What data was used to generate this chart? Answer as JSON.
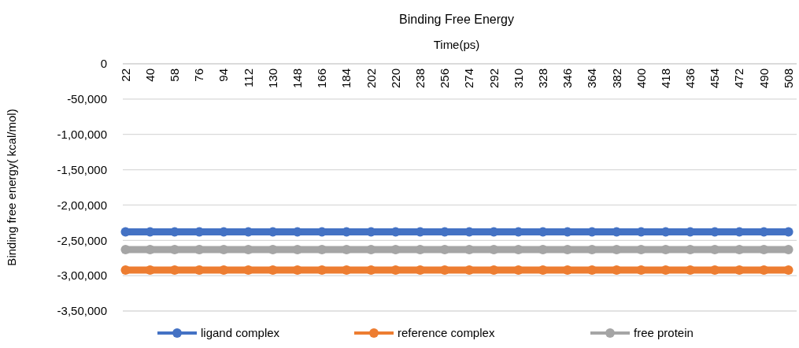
{
  "chart_data": {
    "type": "line",
    "title": "Binding Free Energy",
    "xlabel": "Time(ps)",
    "ylabel": "Binding free energy( kcal/mol)",
    "x": [
      22,
      40,
      58,
      76,
      94,
      112,
      130,
      148,
      166,
      184,
      202,
      220,
      238,
      256,
      274,
      292,
      310,
      328,
      346,
      364,
      382,
      400,
      418,
      436,
      454,
      472,
      490,
      508
    ],
    "series": [
      {
        "name": "ligand complex",
        "color": "#4472c4",
        "values": [
          -238000,
          -238000,
          -238000,
          -238000,
          -238000,
          -238000,
          -238000,
          -238000,
          -238000,
          -238000,
          -238000,
          -238000,
          -238000,
          -238000,
          -238000,
          -238000,
          -238000,
          -238000,
          -238000,
          -238000,
          -238000,
          -238000,
          -238000,
          -238000,
          -238000,
          -238000,
          -238000,
          -238000
        ]
      },
      {
        "name": "reference complex",
        "color": "#ed7d31",
        "values": [
          -292000,
          -292000,
          -292000,
          -292000,
          -292000,
          -292000,
          -292000,
          -292000,
          -292000,
          -292000,
          -292000,
          -292000,
          -292000,
          -292000,
          -292000,
          -292000,
          -292000,
          -292000,
          -292000,
          -292000,
          -292000,
          -292000,
          -292000,
          -292000,
          -292000,
          -292000,
          -292000,
          -292000
        ]
      },
      {
        "name": "free protein",
        "color": "#a5a5a5",
        "values": [
          -263000,
          -263000,
          -263000,
          -263000,
          -263000,
          -263000,
          -263000,
          -263000,
          -263000,
          -263000,
          -263000,
          -263000,
          -263000,
          -263000,
          -263000,
          -263000,
          -263000,
          -263000,
          -263000,
          -263000,
          -263000,
          -263000,
          -263000,
          -263000,
          -263000,
          -263000,
          -263000,
          -263000
        ]
      }
    ],
    "xlim": [
      20,
      514
    ],
    "xticks": [
      22,
      40,
      58,
      76,
      94,
      112,
      130,
      148,
      166,
      184,
      202,
      220,
      238,
      256,
      274,
      292,
      310,
      328,
      346,
      364,
      382,
      400,
      418,
      436,
      454,
      472,
      490,
      508
    ],
    "ylim": [
      -350000,
      0
    ],
    "yticks": [
      0,
      {
        "value": -50000,
        "label": "-50,000"
      },
      {
        "value": -100000,
        "label": "-1,00,000"
      },
      {
        "value": -150000,
        "label": "-1,50,000"
      },
      {
        "value": -200000,
        "label": "-2,00,000"
      },
      {
        "value": -250000,
        "label": "-2,50,000"
      },
      {
        "value": -300000,
        "label": "-3,00,000"
      },
      {
        "value": -350000,
        "label": "-3,50,000"
      }
    ],
    "grid": "y",
    "legend": "bottom",
    "marker": "circle",
    "line_style": "solid"
  }
}
